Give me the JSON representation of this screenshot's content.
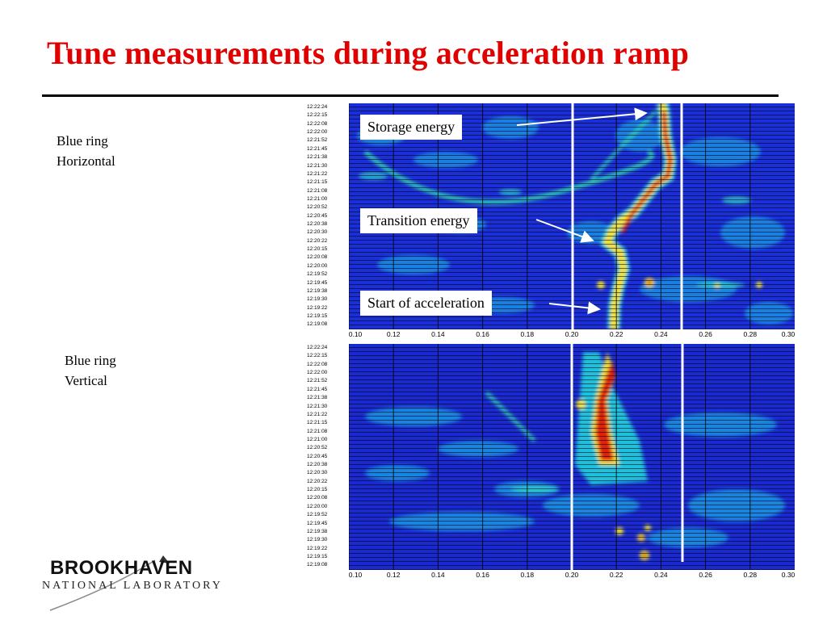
{
  "slide": {
    "title": "Tune measurements during acceleration ramp"
  },
  "panels": [
    {
      "label_line1": "Blue ring",
      "label_line2": "Horizontal",
      "y_ticks": [
        "12:22:24",
        "12:22:15",
        "12:22:08",
        "12:22:00",
        "12:21:52",
        "12:21:45",
        "12:21:38",
        "12:21:30",
        "12:21:22",
        "12:21:15",
        "12:21:08",
        "12:21:00",
        "12:20:52",
        "12:20:45",
        "12:20:38",
        "12:20:30",
        "12:20:22",
        "12:20:15",
        "12:20:08",
        "12:20:00",
        "12:19:52",
        "12:19:45",
        "12:19:38",
        "12:19:30",
        "12:19:22",
        "12:19:15",
        "12:19:08"
      ]
    },
    {
      "label_line1": "Blue ring",
      "label_line2": "Vertical",
      "y_ticks": [
        "12:22:24",
        "12:22:15",
        "12:22:08",
        "12:22:00",
        "12:21:52",
        "12:21:45",
        "12:21:38",
        "12:21:30",
        "12:21:22",
        "12:21:15",
        "12:21:08",
        "12:21:00",
        "12:20:52",
        "12:20:45",
        "12:20:38",
        "12:20:30",
        "12:20:22",
        "12:20:15",
        "12:20:08",
        "12:20:00",
        "12:19:52",
        "12:19:45",
        "12:19:38",
        "12:19:30",
        "12:19:22",
        "12:19:15",
        "12:19:08"
      ]
    }
  ],
  "x_ticks": [
    "0.10",
    "0.12",
    "0.14",
    "0.16",
    "0.18",
    "0.20",
    "0.22",
    "0.24",
    "0.26",
    "0.28",
    "0.30"
  ],
  "annotations": {
    "storage": "Storage energy",
    "transition": "Transition energy",
    "start": "Start of acceleration"
  },
  "logo": {
    "brand": "BROOKHAVEN",
    "sub": "NATIONAL LABORATORY"
  },
  "colors": {
    "title": "#e00000",
    "spectrogram_background": "#1b2fd8",
    "peak_high": "#e02010",
    "peak_mid": "#f0e030",
    "peak_low": "#20d0e0"
  }
}
